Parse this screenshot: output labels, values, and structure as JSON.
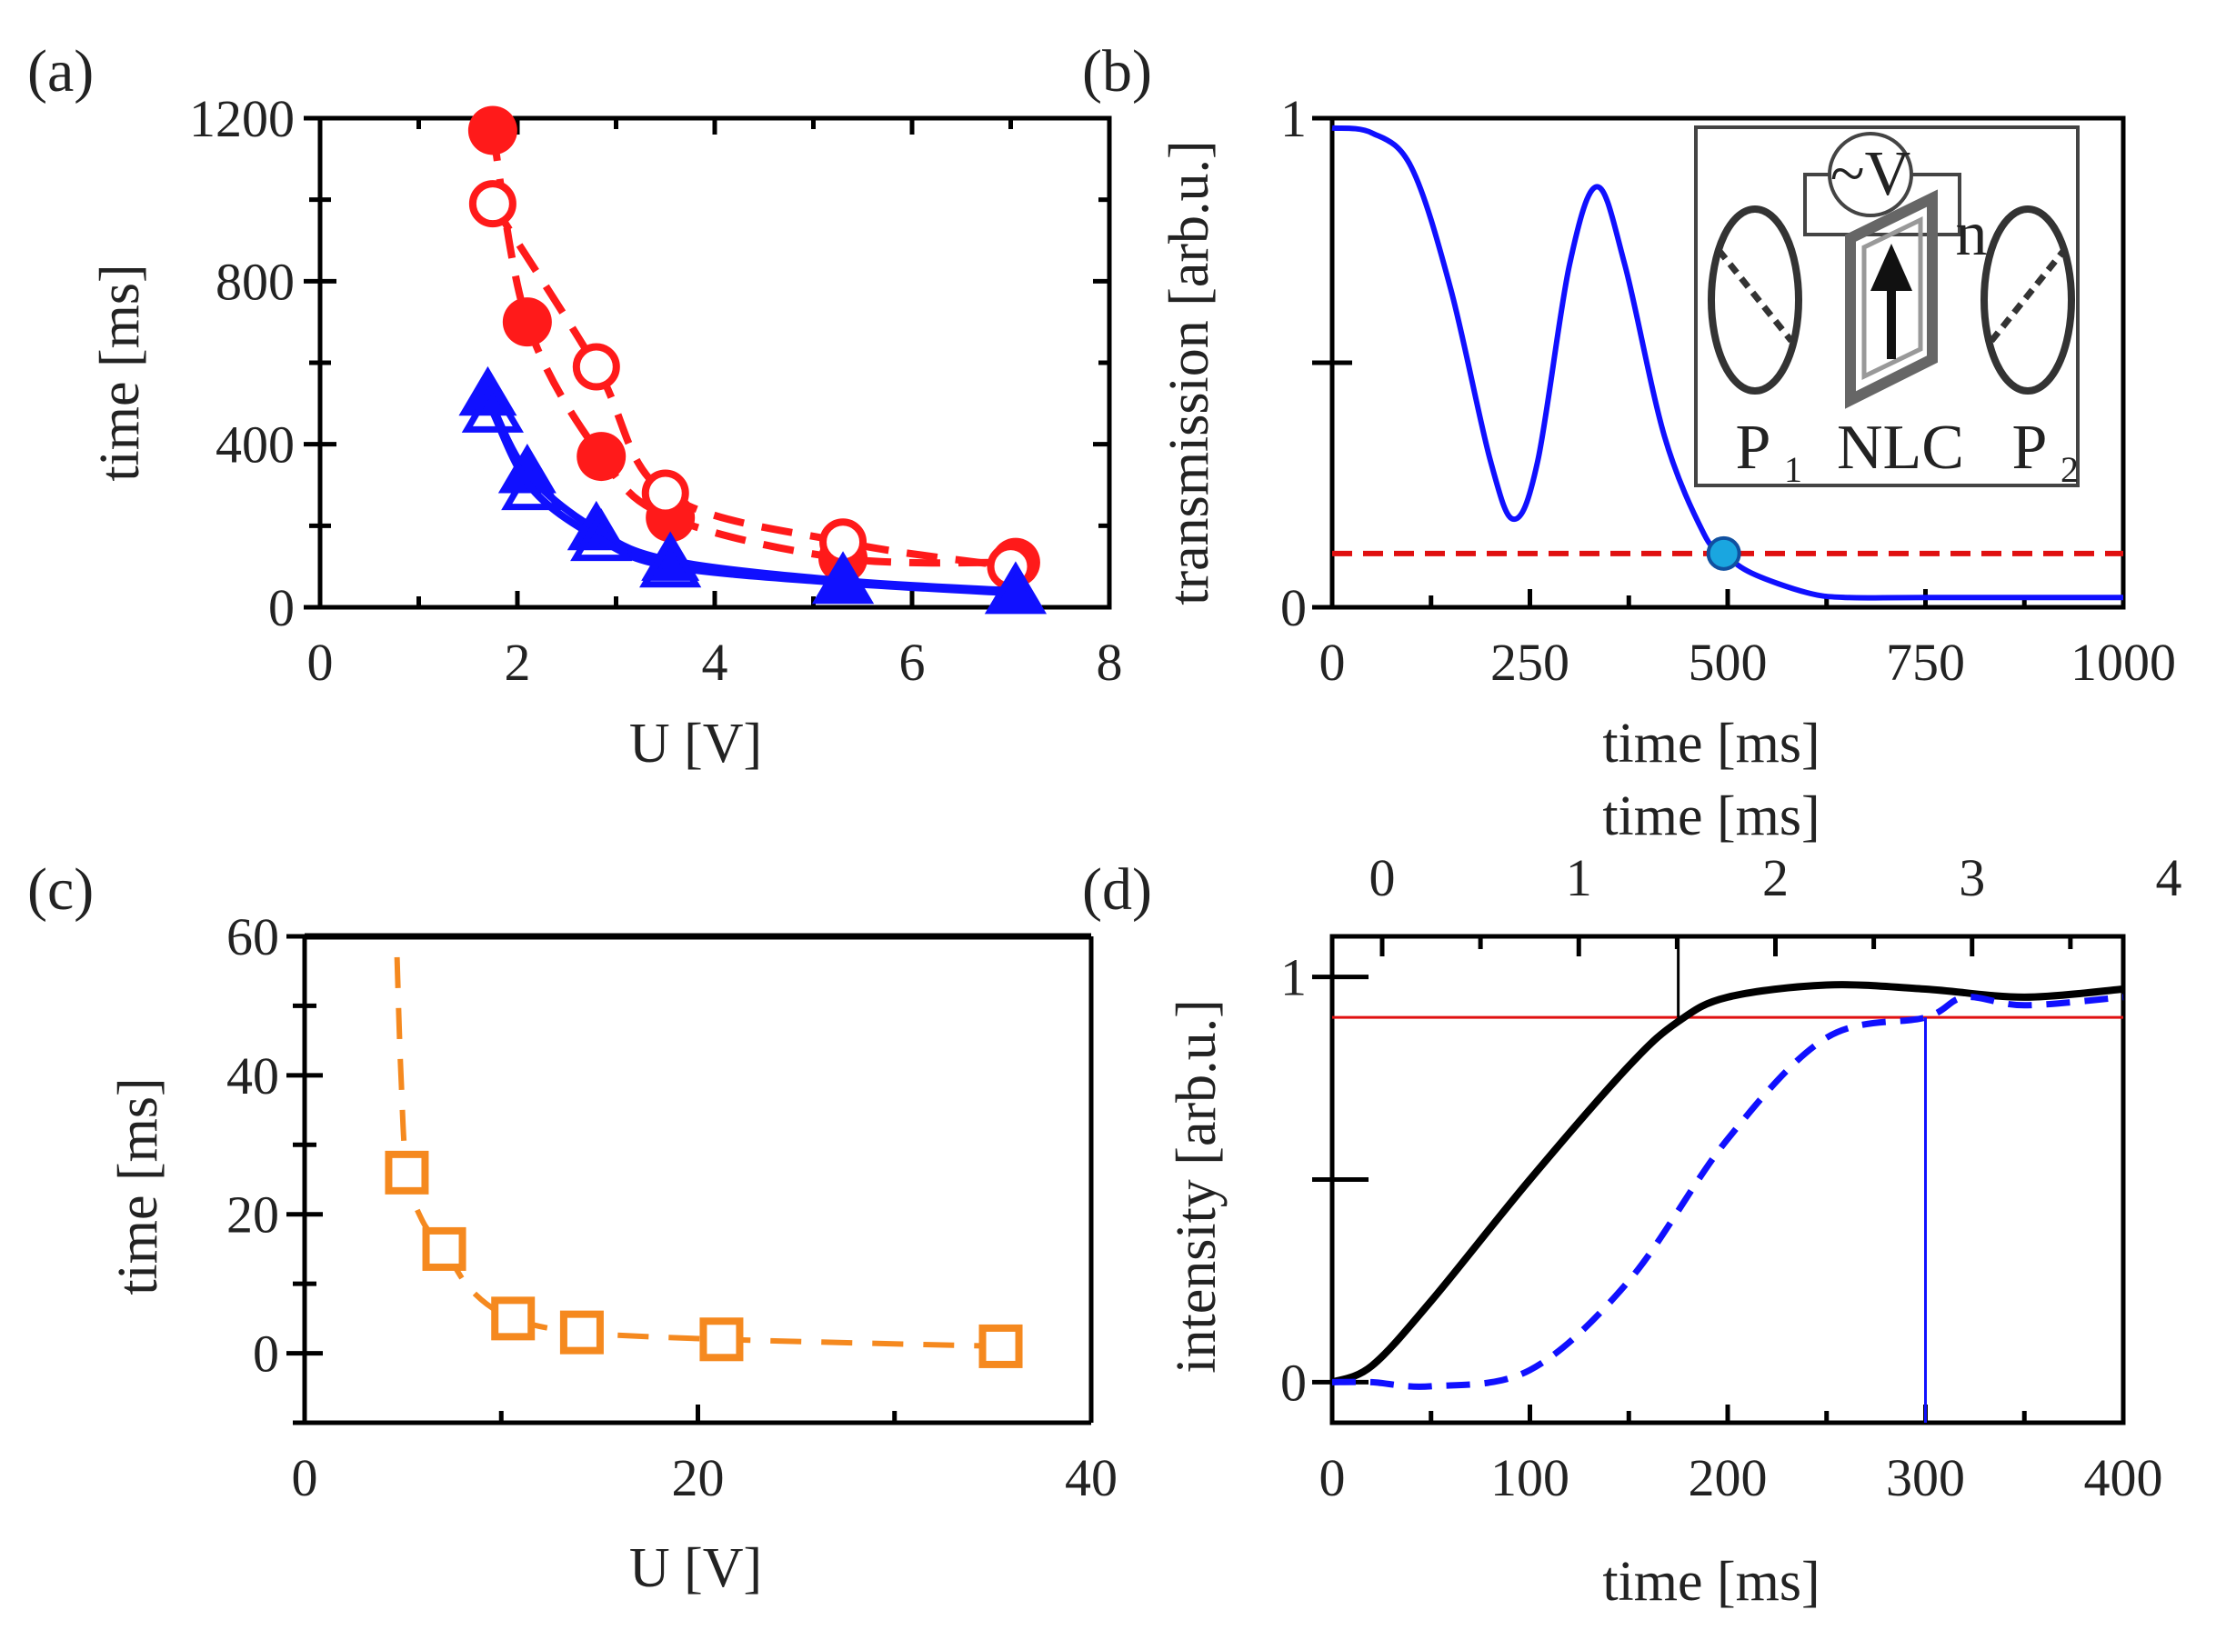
{
  "chart_data": [
    {
      "panel": "(a)",
      "type": "scatter",
      "xlabel": "U [V]",
      "ylabel": "time [ms]",
      "xlim": [
        0,
        8
      ],
      "ylim": [
        0,
        1200
      ],
      "xticks": [
        "0",
        "2",
        "4",
        "6",
        "8"
      ],
      "yticks": [
        "0",
        "400",
        "800",
        "1200"
      ],
      "series": [
        {
          "name": "filled circles",
          "marker": "circle-filled",
          "line": "dashed",
          "color": "#ff1a1a",
          "x": [
            1.75,
            2.1,
            2.85,
            3.55,
            5.3,
            7.05
          ],
          "y": [
            1170,
            700,
            370,
            220,
            120,
            110
          ]
        },
        {
          "name": "open circles",
          "marker": "circle-open",
          "line": "dashed",
          "color": "#ff1a1a",
          "x": [
            1.75,
            2.8,
            3.5,
            5.3,
            7.0
          ],
          "y": [
            990,
            590,
            280,
            160,
            100
          ]
        },
        {
          "name": "filled triangles",
          "marker": "triangle-filled",
          "line": "solid",
          "color": "#1010ff",
          "x": [
            1.7,
            2.1,
            2.8,
            3.55,
            5.3,
            7.05
          ],
          "y": [
            520,
            330,
            190,
            115,
            65,
            40
          ]
        },
        {
          "name": "open triangles",
          "marker": "triangle-open",
          "line": "solid",
          "color": "#1010ff",
          "x": [
            1.75,
            2.15,
            2.85,
            3.55,
            5.3,
            7.05
          ],
          "y": [
            480,
            290,
            165,
            100,
            60,
            35
          ]
        }
      ]
    },
    {
      "panel": "(b)",
      "type": "line",
      "xlabel": "time [ms]",
      "ylabel": "transmission [arb.u.]",
      "xlim": [
        0,
        1000
      ],
      "ylim": [
        0,
        1
      ],
      "xticks": [
        "0",
        "250",
        "500",
        "750",
        "1000"
      ],
      "yticks": [
        "0",
        "1"
      ],
      "series": [
        {
          "name": "transmission",
          "color": "#1010ff",
          "line": "solid",
          "x": [
            0,
            50,
            100,
            150,
            200,
            230,
            260,
            300,
            335,
            370,
            420,
            470,
            495,
            530,
            600,
            650,
            750,
            1000
          ],
          "y": [
            0.98,
            0.97,
            0.9,
            0.65,
            0.3,
            0.18,
            0.3,
            0.7,
            0.86,
            0.7,
            0.35,
            0.15,
            0.11,
            0.07,
            0.03,
            0.02,
            0.02,
            0.02
          ]
        }
      ],
      "threshold": {
        "y": 0.11,
        "color": "#e01010",
        "style": "dashed"
      },
      "marker_point": {
        "x": 495,
        "y": 0.11,
        "color": "#1aa6e0"
      },
      "inset": {
        "labels": [
          "~V",
          "n",
          "P",
          "1",
          "NLC",
          "P",
          "2"
        ]
      }
    },
    {
      "panel": "(c)",
      "type": "scatter",
      "xlabel": "U [V]",
      "ylabel": "time [ms]",
      "xlim": [
        0,
        40
      ],
      "ylim": [
        -10,
        60
      ],
      "xticks": [
        "0",
        "20",
        "40"
      ],
      "yticks": [
        "0",
        "20",
        "40",
        "60"
      ],
      "series": [
        {
          "name": "open squares",
          "marker": "square-open",
          "line": "dashed",
          "color": "#f5891f",
          "x": [
            5.2,
            7.1,
            10.6,
            14.1,
            21.2,
            35.4
          ],
          "y": [
            26,
            15,
            5,
            3,
            2,
            1
          ]
        }
      ],
      "fit_curve": {
        "x": [
          4.7,
          4.9,
          5.2,
          6.0,
          7.1,
          8.5,
          10.6,
          14.1,
          21.2,
          35.4
        ],
        "y": [
          57,
          40,
          26,
          19,
          15,
          9,
          5,
          3,
          2,
          1
        ]
      }
    },
    {
      "panel": "(d)",
      "type": "line",
      "xlabel": "time [ms]",
      "ylabel": "intensity [arb.u.]",
      "top_xlabel": "time [ms]",
      "xlim": [
        0,
        400
      ],
      "ylim": [
        -0.1,
        1.1
      ],
      "xticks": [
        "0",
        "100",
        "200",
        "300",
        "400"
      ],
      "top_xticks": [
        "0",
        "1",
        "2",
        "3",
        "4"
      ],
      "yticks": [
        "0",
        "1"
      ],
      "series": [
        {
          "name": "bottom axis response",
          "color": "#000000",
          "line": "solid",
          "x": [
            0,
            20,
            50,
            100,
            150,
            175,
            200,
            250,
            300,
            350,
            400
          ],
          "y": [
            0,
            0.04,
            0.2,
            0.5,
            0.78,
            0.89,
            0.95,
            0.98,
            0.97,
            0.95,
            0.97
          ]
        },
        {
          "name": "top axis response",
          "color": "#1010ff",
          "line": "dashed",
          "x": [
            0,
            20,
            50,
            100,
            150,
            200,
            250,
            300,
            320,
            350,
            400
          ],
          "y": [
            0,
            0,
            -0.01,
            0.03,
            0.25,
            0.6,
            0.85,
            0.9,
            0.95,
            0.93,
            0.95
          ]
        }
      ],
      "threshold": {
        "y": 0.9,
        "color": "#e01010"
      },
      "markers": [
        {
          "x": 175,
          "color": "#000000"
        },
        {
          "x": 300,
          "color": "#1010ff"
        }
      ]
    }
  ]
}
